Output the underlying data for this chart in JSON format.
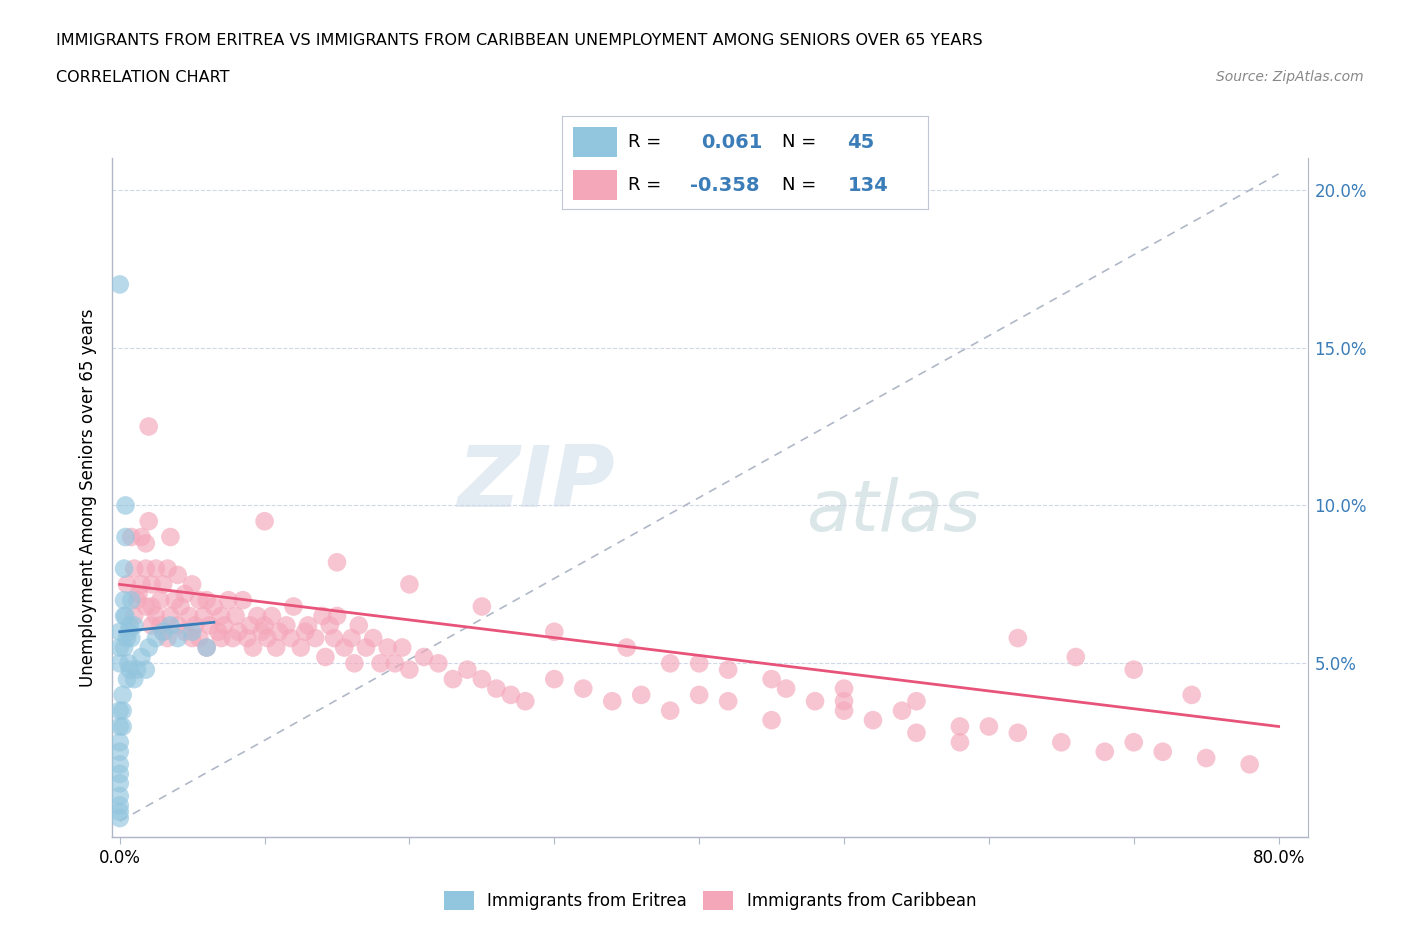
{
  "title_line1": "IMMIGRANTS FROM ERITREA VS IMMIGRANTS FROM CARIBBEAN UNEMPLOYMENT AMONG SENIORS OVER 65 YEARS",
  "title_line2": "CORRELATION CHART",
  "source": "Source: ZipAtlas.com",
  "ylabel": "Unemployment Among Seniors over 65 years",
  "xlim": [
    -0.005,
    0.82
  ],
  "ylim": [
    -0.005,
    0.21
  ],
  "xtick_vals": [
    0.0,
    0.1,
    0.2,
    0.3,
    0.4,
    0.5,
    0.6,
    0.7,
    0.8
  ],
  "xticklabels": [
    "0.0%",
    "",
    "",
    "",
    "",
    "",
    "",
    "",
    "80.0%"
  ],
  "ytick_vals": [
    0.0,
    0.05,
    0.1,
    0.15,
    0.2
  ],
  "yticklabels_left": [
    "",
    "",
    "",
    "",
    ""
  ],
  "ytick_right_vals": [
    0.05,
    0.1,
    0.15,
    0.2
  ],
  "yticklabels_right": [
    "5.0%",
    "10.0%",
    "15.0%",
    "20.0%"
  ],
  "R_eritrea": 0.061,
  "N_eritrea": 45,
  "R_caribbean": -0.358,
  "N_caribbean": 134,
  "color_eritrea": "#92c5de",
  "color_caribbean": "#f4a7b9",
  "color_trendline_eritrea": "#3a7db8",
  "color_trendline_caribbean": "#e8537a",
  "color_dashed": "#b0b8c8",
  "legend_label_eritrea": "Immigrants from Eritrea",
  "legend_label_caribbean": "Immigrants from Caribbean",
  "watermark_zip": "ZIP",
  "watermark_atlas": "atlas",
  "eritrea_x": [
    0.0,
    0.0,
    0.0,
    0.0,
    0.0,
    0.0,
    0.0,
    0.0,
    0.0,
    0.0,
    0.0,
    0.0,
    0.0,
    0.0,
    0.0,
    0.002,
    0.002,
    0.002,
    0.003,
    0.003,
    0.003,
    0.003,
    0.004,
    0.004,
    0.004,
    0.005,
    0.005,
    0.006,
    0.006,
    0.007,
    0.007,
    0.008,
    0.008,
    0.01,
    0.01,
    0.012,
    0.015,
    0.018,
    0.02,
    0.025,
    0.03,
    0.035,
    0.04,
    0.05,
    0.06
  ],
  "eritrea_y": [
    0.035,
    0.03,
    0.025,
    0.022,
    0.018,
    0.015,
    0.012,
    0.008,
    0.005,
    0.003,
    0.001,
    0.06,
    0.055,
    0.05,
    0.17,
    0.04,
    0.035,
    0.03,
    0.08,
    0.07,
    0.065,
    0.055,
    0.1,
    0.09,
    0.065,
    0.058,
    0.045,
    0.06,
    0.05,
    0.062,
    0.048,
    0.07,
    0.058,
    0.062,
    0.045,
    0.048,
    0.052,
    0.048,
    0.055,
    0.058,
    0.06,
    0.062,
    0.058,
    0.06,
    0.055
  ],
  "caribbean_x": [
    0.005,
    0.008,
    0.01,
    0.01,
    0.012,
    0.013,
    0.015,
    0.015,
    0.018,
    0.018,
    0.02,
    0.02,
    0.022,
    0.022,
    0.025,
    0.025,
    0.028,
    0.028,
    0.03,
    0.03,
    0.033,
    0.033,
    0.035,
    0.035,
    0.038,
    0.04,
    0.04,
    0.042,
    0.045,
    0.045,
    0.048,
    0.05,
    0.05,
    0.052,
    0.055,
    0.055,
    0.058,
    0.06,
    0.06,
    0.062,
    0.065,
    0.068,
    0.07,
    0.07,
    0.072,
    0.075,
    0.078,
    0.08,
    0.082,
    0.085,
    0.088,
    0.09,
    0.092,
    0.095,
    0.098,
    0.1,
    0.102,
    0.105,
    0.108,
    0.11,
    0.115,
    0.118,
    0.12,
    0.125,
    0.128,
    0.13,
    0.135,
    0.14,
    0.142,
    0.145,
    0.148,
    0.15,
    0.155,
    0.16,
    0.162,
    0.165,
    0.17,
    0.175,
    0.18,
    0.185,
    0.19,
    0.195,
    0.2,
    0.21,
    0.22,
    0.23,
    0.24,
    0.25,
    0.26,
    0.27,
    0.28,
    0.3,
    0.32,
    0.34,
    0.36,
    0.38,
    0.4,
    0.42,
    0.45,
    0.48,
    0.5,
    0.52,
    0.55,
    0.58,
    0.6,
    0.62,
    0.65,
    0.68,
    0.7,
    0.72,
    0.75,
    0.78,
    0.62,
    0.66,
    0.7,
    0.74,
    0.38,
    0.42,
    0.46,
    0.5,
    0.54,
    0.58,
    0.1,
    0.15,
    0.2,
    0.25,
    0.3,
    0.35,
    0.4,
    0.45,
    0.5,
    0.55,
    0.018,
    0.022
  ],
  "caribbean_y": [
    0.075,
    0.09,
    0.08,
    0.065,
    0.07,
    0.072,
    0.09,
    0.075,
    0.088,
    0.08,
    0.125,
    0.095,
    0.075,
    0.068,
    0.08,
    0.065,
    0.07,
    0.062,
    0.075,
    0.06,
    0.08,
    0.058,
    0.09,
    0.065,
    0.07,
    0.078,
    0.062,
    0.068,
    0.072,
    0.06,
    0.065,
    0.075,
    0.058,
    0.062,
    0.07,
    0.058,
    0.065,
    0.07,
    0.055,
    0.062,
    0.068,
    0.06,
    0.065,
    0.058,
    0.062,
    0.07,
    0.058,
    0.065,
    0.06,
    0.07,
    0.058,
    0.062,
    0.055,
    0.065,
    0.06,
    0.062,
    0.058,
    0.065,
    0.055,
    0.06,
    0.062,
    0.058,
    0.068,
    0.055,
    0.06,
    0.062,
    0.058,
    0.065,
    0.052,
    0.062,
    0.058,
    0.065,
    0.055,
    0.058,
    0.05,
    0.062,
    0.055,
    0.058,
    0.05,
    0.055,
    0.05,
    0.055,
    0.048,
    0.052,
    0.05,
    0.045,
    0.048,
    0.045,
    0.042,
    0.04,
    0.038,
    0.045,
    0.042,
    0.038,
    0.04,
    0.035,
    0.04,
    0.038,
    0.032,
    0.038,
    0.035,
    0.032,
    0.028,
    0.025,
    0.03,
    0.028,
    0.025,
    0.022,
    0.025,
    0.022,
    0.02,
    0.018,
    0.058,
    0.052,
    0.048,
    0.04,
    0.05,
    0.048,
    0.042,
    0.038,
    0.035,
    0.03,
    0.095,
    0.082,
    0.075,
    0.068,
    0.06,
    0.055,
    0.05,
    0.045,
    0.042,
    0.038,
    0.068,
    0.062
  ],
  "trend_eritrea_x0": 0.0,
  "trend_eritrea_x1": 0.065,
  "trend_eritrea_y0": 0.06,
  "trend_eritrea_y1": 0.063,
  "trend_caribbean_x0": 0.0,
  "trend_caribbean_x1": 0.8,
  "trend_caribbean_y0": 0.075,
  "trend_caribbean_y1": 0.03
}
